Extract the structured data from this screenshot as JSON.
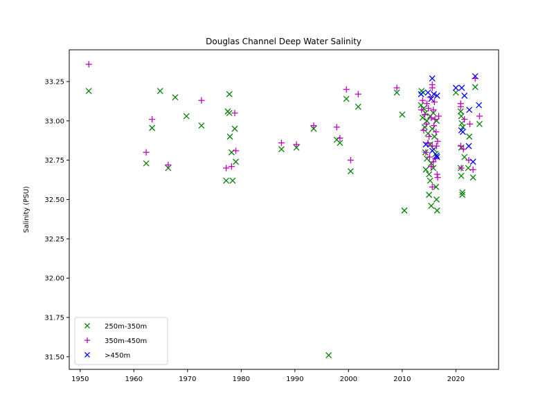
{
  "chart_data": {
    "type": "scatter",
    "title": "Douglas Channel Deep Water Salinity",
    "xlabel": "",
    "ylabel": "Salinity (PSU)",
    "xlim": [
      1947.96,
      2027.96
    ],
    "ylim": [
      31.42,
      33.452
    ],
    "xticks": [
      1950,
      1960,
      1970,
      1980,
      1990,
      2000,
      2010,
      2020
    ],
    "xtick_labels": [
      "1950",
      "1960",
      "1970",
      "1980",
      "1990",
      "2000",
      "2010",
      "2020"
    ],
    "yticks": [
      31.5,
      31.75,
      32.0,
      32.25,
      32.5,
      32.75,
      33.0,
      33.25
    ],
    "ytick_labels": [
      "31.50",
      "31.75",
      "32.00",
      "32.25",
      "32.50",
      "32.75",
      "33.00",
      "33.25"
    ],
    "grid": false,
    "legend_position": "lower-left",
    "series": [
      {
        "name": "250m-350m",
        "marker": "x",
        "color": "#008000",
        "points": [
          [
            1951.6,
            33.19
          ],
          [
            1964.9,
            33.19
          ],
          [
            1967.7,
            33.15
          ],
          [
            1963.4,
            32.955
          ],
          [
            1962.3,
            32.73
          ],
          [
            1966.4,
            32.7
          ],
          [
            1969.8,
            33.03
          ],
          [
            1972.6,
            32.97
          ],
          [
            1977.8,
            33.17
          ],
          [
            1977.5,
            33.06
          ],
          [
            1977.8,
            33.05
          ],
          [
            1978.8,
            32.95
          ],
          [
            1977.9,
            32.9
          ],
          [
            1978.2,
            32.8
          ],
          [
            1979.0,
            32.74
          ],
          [
            1977.2,
            32.62
          ],
          [
            1978.4,
            32.62
          ],
          [
            1987.5,
            32.82
          ],
          [
            1990.3,
            32.83
          ],
          [
            1993.5,
            32.95
          ],
          [
            1997.8,
            32.88
          ],
          [
            1998.4,
            32.86
          ],
          [
            1999.6,
            33.14
          ],
          [
            2001.8,
            33.09
          ],
          [
            2000.4,
            32.68
          ],
          [
            2009.0,
            33.18
          ],
          [
            2010.0,
            33.04
          ],
          [
            2010.4,
            32.43
          ],
          [
            1996.3,
            31.51
          ],
          [
            2013.6,
            33.19
          ],
          [
            2013.9,
            33.18
          ],
          [
            2013.5,
            33.1
          ],
          [
            2014.0,
            33.08
          ],
          [
            2014.3,
            33.05
          ],
          [
            2013.8,
            33.02
          ],
          [
            2014.6,
            33.0
          ],
          [
            2015.2,
            33.03
          ],
          [
            2015.8,
            33.05
          ],
          [
            2016.4,
            33.0
          ],
          [
            2014.2,
            32.96
          ],
          [
            2015.6,
            32.95
          ],
          [
            2014.8,
            32.92
          ],
          [
            2016.0,
            32.9
          ],
          [
            2015.2,
            32.85
          ],
          [
            2014.3,
            32.8
          ],
          [
            2016.2,
            32.79
          ],
          [
            2014.6,
            32.76
          ],
          [
            2015.4,
            32.73
          ],
          [
            2014.4,
            32.69
          ],
          [
            2015.8,
            32.7
          ],
          [
            2015.0,
            32.66
          ],
          [
            2015.2,
            32.62
          ],
          [
            2016.3,
            32.58
          ],
          [
            2015.0,
            32.53
          ],
          [
            2016.4,
            32.5
          ],
          [
            2015.4,
            32.46
          ],
          [
            2016.5,
            32.43
          ],
          [
            2015.9,
            32.82
          ],
          [
            2023.6,
            33.215
          ],
          [
            2020.0,
            33.18
          ],
          [
            2020.9,
            33.06
          ],
          [
            2021.0,
            33.03
          ],
          [
            2021.1,
            32.985
          ],
          [
            2024.4,
            32.98
          ],
          [
            2021.3,
            32.96
          ],
          [
            2022.5,
            32.9
          ],
          [
            2021.0,
            32.83
          ],
          [
            2021.6,
            32.77
          ],
          [
            2020.9,
            32.7
          ],
          [
            2022.3,
            32.7
          ],
          [
            2021.0,
            32.65
          ],
          [
            2023.2,
            32.64
          ],
          [
            2021.2,
            32.545
          ],
          [
            2021.2,
            32.53
          ]
        ]
      },
      {
        "name": "350m-450m",
        "marker": "+",
        "color": "#bf00bf",
        "points": [
          [
            1951.6,
            33.36
          ],
          [
            1963.4,
            33.01
          ],
          [
            1962.3,
            32.8
          ],
          [
            1966.4,
            32.72
          ],
          [
            1972.6,
            33.13
          ],
          [
            1978.8,
            33.05
          ],
          [
            1979.0,
            32.81
          ],
          [
            1978.2,
            32.71
          ],
          [
            1977.2,
            32.7
          ],
          [
            1987.5,
            32.86
          ],
          [
            1990.3,
            32.85
          ],
          [
            1993.5,
            32.97
          ],
          [
            1997.8,
            32.96
          ],
          [
            1998.4,
            32.89
          ],
          [
            1999.6,
            33.2
          ],
          [
            2001.8,
            33.17
          ],
          [
            2000.4,
            32.75
          ],
          [
            2009.0,
            33.21
          ],
          [
            2015.6,
            33.23
          ],
          [
            2015.6,
            33.21
          ],
          [
            2015.2,
            33.15
          ],
          [
            2013.8,
            33.13
          ],
          [
            2014.6,
            33.11
          ],
          [
            2016.0,
            33.12
          ],
          [
            2013.6,
            33.07
          ],
          [
            2014.9,
            33.08
          ],
          [
            2015.8,
            33.07
          ],
          [
            2014.2,
            33.04
          ],
          [
            2015.4,
            33.02
          ],
          [
            2016.1,
            33.01
          ],
          [
            2016.8,
            33.03
          ],
          [
            2014.5,
            32.98
          ],
          [
            2015.9,
            32.97
          ],
          [
            2014.0,
            32.94
          ],
          [
            2016.3,
            32.93
          ],
          [
            2015.0,
            32.9
          ],
          [
            2016.6,
            32.87
          ],
          [
            2014.8,
            32.86
          ],
          [
            2015.6,
            32.84
          ],
          [
            2016.4,
            32.84
          ],
          [
            2014.4,
            32.8
          ],
          [
            2015.1,
            32.77
          ],
          [
            2016.2,
            32.76
          ],
          [
            2015.8,
            32.74
          ],
          [
            2015.4,
            32.71
          ],
          [
            2016.5,
            32.66
          ],
          [
            2016.6,
            32.64
          ],
          [
            2015.6,
            32.58
          ],
          [
            2023.6,
            33.27
          ],
          [
            2020.9,
            33.11
          ],
          [
            2020.9,
            33.09
          ],
          [
            2021.6,
            33.01
          ],
          [
            2024.4,
            33.03
          ],
          [
            2022.6,
            32.98
          ],
          [
            2020.9,
            32.84
          ],
          [
            2021.4,
            32.82
          ],
          [
            2022.4,
            32.75
          ],
          [
            2023.2,
            32.69
          ],
          [
            2021.0,
            32.7
          ]
        ]
      },
      {
        "name": ">450m",
        "marker": "x",
        "color": "#0000ff",
        "points": [
          [
            2015.6,
            33.27
          ],
          [
            2013.5,
            33.17
          ],
          [
            2014.8,
            33.18
          ],
          [
            2015.9,
            33.17
          ],
          [
            2016.5,
            33.16
          ],
          [
            2015.4,
            33.14
          ],
          [
            2014.4,
            32.85
          ],
          [
            2015.6,
            32.81
          ],
          [
            2016.4,
            32.78
          ],
          [
            2016.5,
            32.77
          ],
          [
            2023.6,
            33.284
          ],
          [
            2020.0,
            33.21
          ],
          [
            2021.1,
            33.21
          ],
          [
            2021.6,
            33.16
          ],
          [
            2024.3,
            33.1
          ],
          [
            2022.5,
            33.07
          ],
          [
            2021.0,
            32.94
          ],
          [
            2021.3,
            32.93
          ],
          [
            2022.4,
            32.84
          ],
          [
            2023.2,
            32.74
          ]
        ]
      }
    ]
  }
}
